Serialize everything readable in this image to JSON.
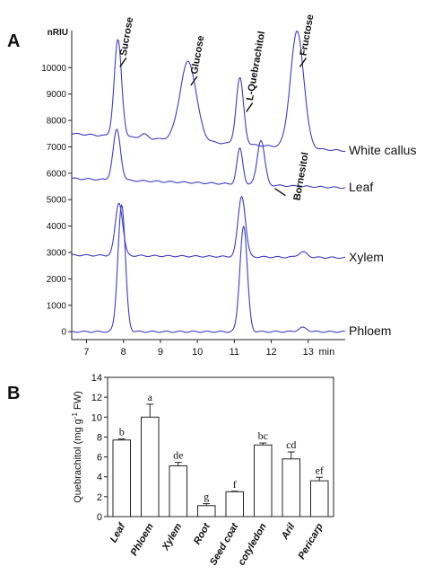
{
  "figure": {
    "panel_a_label": "A",
    "panel_b_label": "B"
  },
  "chart_data": [
    {
      "type": "line",
      "panel": "A",
      "y_unit_label": "nRIU",
      "x_unit_label": "min",
      "xlim": [
        6.6,
        14.0
      ],
      "ylim": [
        -300,
        11200
      ],
      "x_ticks": [
        "7",
        "8",
        "9",
        "10",
        "11",
        "12",
        "13"
      ],
      "x_tick_values": [
        7,
        8,
        9,
        10,
        11,
        12,
        13
      ],
      "y_ticks": [
        "0",
        "1000",
        "2000",
        "3000",
        "4000",
        "5000",
        "6000",
        "7000",
        "8000",
        "9000",
        "10000"
      ],
      "y_tick_values": [
        0,
        1000,
        2000,
        3000,
        4000,
        5000,
        6000,
        7000,
        8000,
        9000,
        10000
      ],
      "traces": [
        {
          "label": "White callus",
          "baseline": 7500,
          "end_baseline": 6850,
          "peaks": [
            {
              "x": 7.85,
              "height": 3650,
              "width": 0.1
            },
            {
              "x": 8.55,
              "height": 150,
              "width": 0.1
            },
            {
              "x": 9.75,
              "height": 3000,
              "width": 0.22
            },
            {
              "x": 11.15,
              "height": 2500,
              "width": 0.1
            },
            {
              "x": 12.7,
              "height": 4400,
              "width": 0.18
            }
          ]
        },
        {
          "label": "Leaf",
          "baseline": 5800,
          "end_baseline": 5450,
          "peaks": [
            {
              "x": 7.82,
              "height": 1900,
              "width": 0.1
            },
            {
              "x": 11.15,
              "height": 1350,
              "width": 0.08
            },
            {
              "x": 11.72,
              "height": 1700,
              "width": 0.1
            }
          ]
        },
        {
          "label": "Xylem",
          "baseline": 2900,
          "end_baseline": 2800,
          "peaks": [
            {
              "x": 7.88,
              "height": 2000,
              "width": 0.1
            },
            {
              "x": 11.2,
              "height": 2300,
              "width": 0.1
            },
            {
              "x": 12.85,
              "height": 200,
              "width": 0.12
            }
          ]
        },
        {
          "label": "Phloem",
          "baseline": 0,
          "end_baseline": 0,
          "peaks": [
            {
              "x": 7.95,
              "height": 4800,
              "width": 0.1
            },
            {
              "x": 11.25,
              "height": 4000,
              "width": 0.1
            },
            {
              "x": 12.85,
              "height": 150,
              "width": 0.12
            }
          ]
        }
      ],
      "annotations": [
        {
          "text": "Sucrose",
          "x": 7.88,
          "y": 10300
        },
        {
          "text": "Glucose",
          "x": 9.8,
          "y": 9600
        },
        {
          "text": "L-Quebrachitol",
          "x": 11.3,
          "y": 8600
        },
        {
          "text": "Fructose",
          "x": 12.75,
          "y": 10300
        },
        {
          "text": "Bornesitol",
          "x": 11.85,
          "y": 5700
        }
      ],
      "line_color": "#3c3cc8"
    },
    {
      "type": "bar",
      "panel": "B",
      "ylabel": "Quebrachitol (mg g-1 FW)",
      "ylim": [
        0,
        14
      ],
      "y_ticks": [
        "0",
        "2",
        "4",
        "6",
        "8",
        "10",
        "12",
        "14"
      ],
      "y_tick_values": [
        0,
        2,
        4,
        6,
        8,
        10,
        12,
        14
      ],
      "categories": [
        "Leaf",
        "Phloem",
        "Xylem",
        "Root",
        "Seed coat",
        "cotyledon",
        "Aril",
        "Pericarp"
      ],
      "values": [
        7.7,
        10.0,
        5.1,
        1.1,
        2.5,
        7.2,
        5.8,
        3.6
      ],
      "errors": [
        0.1,
        1.3,
        0.35,
        0.2,
        0.05,
        0.2,
        0.7,
        0.35
      ],
      "letters": [
        "b",
        "a",
        "de",
        "g",
        "f",
        "bc",
        "cd",
        "ef"
      ]
    }
  ]
}
